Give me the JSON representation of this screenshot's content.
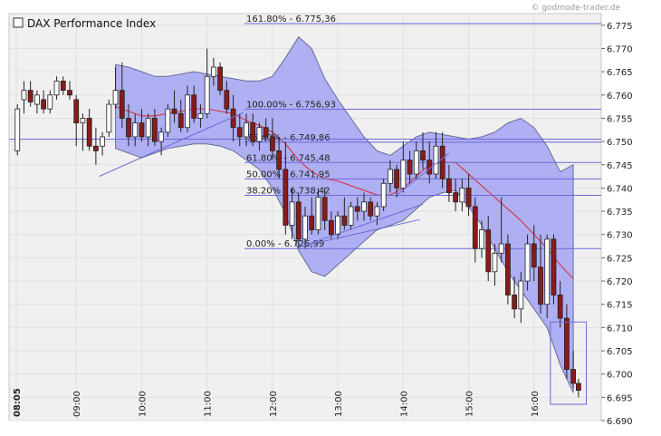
{
  "watermark": "© godmode-trader.de",
  "chart_data": {
    "type": "candlestick",
    "title": "DAX Performance Index",
    "xlabel": "",
    "ylabel": "",
    "ylim": [
      6.69,
      6.777
    ],
    "y_ticks": [
      6.69,
      6.695,
      6.7,
      6.705,
      6.71,
      6.715,
      6.72,
      6.725,
      6.73,
      6.735,
      6.74,
      6.745,
      6.75,
      6.755,
      6.76,
      6.765,
      6.77,
      6.775
    ],
    "y_tick_labels": [
      "6.690",
      "6.695",
      "6.700",
      "6.705",
      "6.710",
      "6.715",
      "6.720",
      "6.725",
      "6.730",
      "6.735",
      "6.740",
      "6.745",
      "6.750",
      "6.755",
      "6.760",
      "6.765",
      "6.770",
      "6.775"
    ],
    "x_tick_labels": [
      "08:05",
      "09:00",
      "10:00",
      "11:00",
      "12:00",
      "13:00",
      "14:00",
      "15:00",
      "16:00"
    ],
    "x_tick_times": [
      8.083,
      9.0,
      10.0,
      11.0,
      12.0,
      13.0,
      14.0,
      15.0,
      16.0
    ],
    "x_range": [
      8.0,
      17.0
    ],
    "grid": true,
    "colors": {
      "up": "#ffffff",
      "down": "#8b1a1a",
      "band_fill": "#a3a3f3",
      "band_edge": "#6b6b9b",
      "average": "#d04050",
      "level_lines": "#6a6ad8",
      "trend_lines": "#6a6ad8",
      "plot_bg": "#f0f0f0",
      "grid": "#e0e0e0"
    },
    "fibonacci_levels": [
      {
        "label": "161.80% - 6.775,36",
        "value": 6.77536
      },
      {
        "label": "100.00% - 6.756,93",
        "value": 6.75693
      },
      {
        "label": "76.40% - 6.749,86",
        "value": 6.74986
      },
      {
        "label": "61.80% - 6.745,48",
        "value": 6.74548
      },
      {
        "label": "50.00% - 6.741,95",
        "value": 6.74195
      },
      {
        "label": "38.20% - 6.738,42",
        "value": 6.73842
      },
      {
        "label": "0.00% - 6.726,99",
        "value": 6.72699
      }
    ],
    "horizontal_line": 6.7505,
    "trend_lines": [
      {
        "x": [
          9.35,
          11.55
        ],
        "y": [
          6.7425,
          6.7562
        ]
      },
      {
        "x": [
          12.45,
          14.3
        ],
        "y": [
          6.7275,
          6.7365
        ]
      },
      {
        "x": [
          12.45,
          14.25
        ],
        "y": [
          6.7275,
          6.7332
        ]
      },
      {
        "x": [
          13.9,
          14.7
        ],
        "y": [
          6.7385,
          6.7475
        ]
      }
    ],
    "highlight_box": {
      "x": [
        16.25,
        16.8
      ],
      "y": [
        6.6935,
        6.7112
      ]
    },
    "bollinger": {
      "x": [
        9.6,
        9.8,
        10.0,
        10.2,
        10.4,
        10.6,
        10.8,
        11.0,
        11.2,
        11.4,
        11.6,
        11.8,
        12.0,
        12.2,
        12.4,
        12.6,
        12.8,
        13.0,
        13.2,
        13.4,
        13.6,
        13.8,
        14.0,
        14.2,
        14.4,
        14.6,
        14.8,
        15.0,
        15.2,
        15.4,
        15.6,
        15.8,
        16.0,
        16.2,
        16.4,
        16.6
      ],
      "upper": [
        6.7665,
        6.766,
        6.765,
        6.764,
        6.764,
        6.7645,
        6.765,
        6.7645,
        6.764,
        6.7635,
        6.763,
        6.763,
        6.764,
        6.768,
        6.7725,
        6.77,
        6.7635,
        6.759,
        6.755,
        6.751,
        6.748,
        6.747,
        6.749,
        6.751,
        6.752,
        6.7515,
        6.751,
        6.7505,
        6.751,
        6.752,
        6.754,
        6.755,
        6.753,
        6.749,
        6.7435,
        6.745
      ],
      "lower": [
        6.7485,
        6.7475,
        6.7465,
        6.7475,
        6.7485,
        6.749,
        6.7495,
        6.7495,
        6.749,
        6.748,
        6.746,
        6.744,
        6.74,
        6.7345,
        6.7265,
        6.722,
        6.721,
        6.7235,
        6.726,
        6.7285,
        6.731,
        6.732,
        6.733,
        6.7355,
        6.738,
        6.739,
        6.7395,
        6.736,
        6.732,
        6.727,
        6.722,
        6.718,
        6.714,
        6.71,
        6.702,
        6.696
      ],
      "middle": [
        6.7575,
        6.7565,
        6.7555,
        6.7555,
        6.756,
        6.7565,
        6.757,
        6.757,
        6.7565,
        6.756,
        6.7545,
        6.7535,
        6.752,
        6.7495,
        6.746,
        6.7435,
        6.742,
        6.7415,
        6.7405,
        6.7395,
        6.7385,
        6.7385,
        6.74,
        6.7425,
        6.745,
        6.7455,
        6.7455,
        6.743,
        6.7405,
        6.738,
        6.7355,
        6.733,
        6.73,
        6.727,
        6.7235,
        6.7205
      ]
    },
    "candles": [
      {
        "t": 8.1,
        "o": 6.748,
        "h": 6.758,
        "l": 6.747,
        "c": 6.757
      },
      {
        "t": 8.2,
        "o": 6.759,
        "h": 6.763,
        "l": 6.756,
        "c": 6.761
      },
      {
        "t": 8.3,
        "o": 6.761,
        "h": 6.763,
        "l": 6.7575,
        "c": 6.7585
      },
      {
        "t": 8.4,
        "o": 6.758,
        "h": 6.761,
        "l": 6.756,
        "c": 6.76
      },
      {
        "t": 8.5,
        "o": 6.759,
        "h": 6.761,
        "l": 6.756,
        "c": 6.757
      },
      {
        "t": 8.6,
        "o": 6.757,
        "h": 6.761,
        "l": 6.756,
        "c": 6.76
      },
      {
        "t": 8.7,
        "o": 6.76,
        "h": 6.764,
        "l": 6.759,
        "c": 6.763
      },
      {
        "t": 8.8,
        "o": 6.763,
        "h": 6.764,
        "l": 6.76,
        "c": 6.761
      },
      {
        "t": 8.9,
        "o": 6.761,
        "h": 6.763,
        "l": 6.759,
        "c": 6.76
      },
      {
        "t": 9.0,
        "o": 6.759,
        "h": 6.76,
        "l": 6.749,
        "c": 6.754
      },
      {
        "t": 9.1,
        "o": 6.754,
        "h": 6.756,
        "l": 6.748,
        "c": 6.755
      },
      {
        "t": 9.2,
        "o": 6.755,
        "h": 6.757,
        "l": 6.748,
        "c": 6.749
      },
      {
        "t": 9.3,
        "o": 6.749,
        "h": 6.753,
        "l": 6.745,
        "c": 6.748
      },
      {
        "t": 9.4,
        "o": 6.749,
        "h": 6.752,
        "l": 6.747,
        "c": 6.751
      },
      {
        "t": 9.5,
        "o": 6.752,
        "h": 6.759,
        "l": 6.751,
        "c": 6.758
      },
      {
        "t": 9.6,
        "o": 6.758,
        "h": 6.766,
        "l": 6.757,
        "c": 6.761
      },
      {
        "t": 9.7,
        "o": 6.761,
        "h": 6.767,
        "l": 6.753,
        "c": 6.755
      },
      {
        "t": 9.8,
        "o": 6.755,
        "h": 6.758,
        "l": 6.749,
        "c": 6.751
      },
      {
        "t": 9.9,
        "o": 6.751,
        "h": 6.756,
        "l": 6.749,
        "c": 6.754
      },
      {
        "t": 10.0,
        "o": 6.754,
        "h": 6.757,
        "l": 6.75,
        "c": 6.751
      },
      {
        "t": 10.1,
        "o": 6.751,
        "h": 6.756,
        "l": 6.749,
        "c": 6.755
      },
      {
        "t": 10.2,
        "o": 6.755,
        "h": 6.757,
        "l": 6.749,
        "c": 6.75
      },
      {
        "t": 10.3,
        "o": 6.75,
        "h": 6.753,
        "l": 6.747,
        "c": 6.752
      },
      {
        "t": 10.4,
        "o": 6.752,
        "h": 6.758,
        "l": 6.751,
        "c": 6.757
      },
      {
        "t": 10.5,
        "o": 6.757,
        "h": 6.761,
        "l": 6.754,
        "c": 6.756
      },
      {
        "t": 10.6,
        "o": 6.756,
        "h": 6.759,
        "l": 6.752,
        "c": 6.753
      },
      {
        "t": 10.7,
        "o": 6.753,
        "h": 6.762,
        "l": 6.752,
        "c": 6.76
      },
      {
        "t": 10.8,
        "o": 6.76,
        "h": 6.762,
        "l": 6.754,
        "c": 6.755
      },
      {
        "t": 10.9,
        "o": 6.755,
        "h": 6.758,
        "l": 6.753,
        "c": 6.756
      },
      {
        "t": 11.0,
        "o": 6.756,
        "h": 6.77,
        "l": 6.755,
        "c": 6.764
      },
      {
        "t": 11.1,
        "o": 6.764,
        "h": 6.768,
        "l": 6.762,
        "c": 6.766
      },
      {
        "t": 11.2,
        "o": 6.766,
        "h": 6.767,
        "l": 6.76,
        "c": 6.761
      },
      {
        "t": 11.3,
        "o": 6.761,
        "h": 6.763,
        "l": 6.756,
        "c": 6.757
      },
      {
        "t": 11.4,
        "o": 6.757,
        "h": 6.76,
        "l": 6.75,
        "c": 6.753
      },
      {
        "t": 11.5,
        "o": 6.753,
        "h": 6.756,
        "l": 6.749,
        "c": 6.751
      },
      {
        "t": 11.6,
        "o": 6.751,
        "h": 6.756,
        "l": 6.749,
        "c": 6.754
      },
      {
        "t": 11.7,
        "o": 6.754,
        "h": 6.756,
        "l": 6.749,
        "c": 6.75
      },
      {
        "t": 11.8,
        "o": 6.75,
        "h": 6.754,
        "l": 6.748,
        "c": 6.753
      },
      {
        "t": 11.9,
        "o": 6.753,
        "h": 6.755,
        "l": 6.75,
        "c": 6.751
      },
      {
        "t": 12.0,
        "o": 6.751,
        "h": 6.755,
        "l": 6.746,
        "c": 6.748
      },
      {
        "t": 12.1,
        "o": 6.748,
        "h": 6.751,
        "l": 6.742,
        "c": 6.744
      },
      {
        "t": 12.2,
        "o": 6.744,
        "h": 6.75,
        "l": 6.73,
        "c": 6.732
      },
      {
        "t": 12.3,
        "o": 6.732,
        "h": 6.74,
        "l": 6.729,
        "c": 6.737
      },
      {
        "t": 12.4,
        "o": 6.737,
        "h": 6.739,
        "l": 6.727,
        "c": 6.729
      },
      {
        "t": 12.5,
        "o": 6.729,
        "h": 6.736,
        "l": 6.727,
        "c": 6.734
      },
      {
        "t": 12.6,
        "o": 6.734,
        "h": 6.738,
        "l": 6.73,
        "c": 6.731
      },
      {
        "t": 12.7,
        "o": 6.731,
        "h": 6.74,
        "l": 6.73,
        "c": 6.738
      },
      {
        "t": 12.8,
        "o": 6.738,
        "h": 6.74,
        "l": 6.731,
        "c": 6.733
      },
      {
        "t": 12.9,
        "o": 6.733,
        "h": 6.735,
        "l": 6.729,
        "c": 6.73
      },
      {
        "t": 13.0,
        "o": 6.73,
        "h": 6.735,
        "l": 6.729,
        "c": 6.734
      },
      {
        "t": 13.1,
        "o": 6.734,
        "h": 6.738,
        "l": 6.731,
        "c": 6.732
      },
      {
        "t": 13.2,
        "o": 6.732,
        "h": 6.737,
        "l": 6.731,
        "c": 6.736
      },
      {
        "t": 13.3,
        "o": 6.736,
        "h": 6.738,
        "l": 6.733,
        "c": 6.735
      },
      {
        "t": 13.4,
        "o": 6.735,
        "h": 6.739,
        "l": 6.733,
        "c": 6.737
      },
      {
        "t": 13.5,
        "o": 6.737,
        "h": 6.738,
        "l": 6.733,
        "c": 6.734
      },
      {
        "t": 13.6,
        "o": 6.734,
        "h": 6.737,
        "l": 6.732,
        "c": 6.736
      },
      {
        "t": 13.7,
        "o": 6.736,
        "h": 6.742,
        "l": 6.735,
        "c": 6.741
      },
      {
        "t": 13.8,
        "o": 6.741,
        "h": 6.746,
        "l": 6.739,
        "c": 6.744
      },
      {
        "t": 13.9,
        "o": 6.744,
        "h": 6.745,
        "l": 6.738,
        "c": 6.74
      },
      {
        "t": 14.0,
        "o": 6.74,
        "h": 6.75,
        "l": 6.739,
        "c": 6.746
      },
      {
        "t": 14.1,
        "o": 6.746,
        "h": 6.748,
        "l": 6.741,
        "c": 6.743
      },
      {
        "t": 14.2,
        "o": 6.743,
        "h": 6.75,
        "l": 6.742,
        "c": 6.748
      },
      {
        "t": 14.3,
        "o": 6.748,
        "h": 6.752,
        "l": 6.744,
        "c": 6.746
      },
      {
        "t": 14.4,
        "o": 6.746,
        "h": 6.75,
        "l": 6.741,
        "c": 6.743
      },
      {
        "t": 14.5,
        "o": 6.743,
        "h": 6.752,
        "l": 6.742,
        "c": 6.749
      },
      {
        "t": 14.6,
        "o": 6.749,
        "h": 6.752,
        "l": 6.74,
        "c": 6.742
      },
      {
        "t": 14.7,
        "o": 6.742,
        "h": 6.745,
        "l": 6.737,
        "c": 6.739
      },
      {
        "t": 14.8,
        "o": 6.739,
        "h": 6.742,
        "l": 6.735,
        "c": 6.737
      },
      {
        "t": 14.9,
        "o": 6.737,
        "h": 6.742,
        "l": 6.735,
        "c": 6.74
      },
      {
        "t": 15.0,
        "o": 6.74,
        "h": 6.743,
        "l": 6.734,
        "c": 6.736
      },
      {
        "t": 15.1,
        "o": 6.736,
        "h": 6.738,
        "l": 6.724,
        "c": 6.727
      },
      {
        "t": 15.2,
        "o": 6.727,
        "h": 6.733,
        "l": 6.725,
        "c": 6.731
      },
      {
        "t": 15.3,
        "o": 6.731,
        "h": 6.734,
        "l": 6.72,
        "c": 6.722
      },
      {
        "t": 15.4,
        "o": 6.722,
        "h": 6.728,
        "l": 6.719,
        "c": 6.726
      },
      {
        "t": 15.5,
        "o": 6.726,
        "h": 6.738,
        "l": 6.724,
        "c": 6.728
      },
      {
        "t": 15.6,
        "o": 6.728,
        "h": 6.73,
        "l": 6.715,
        "c": 6.717
      },
      {
        "t": 15.7,
        "o": 6.717,
        "h": 6.721,
        "l": 6.712,
        "c": 6.714
      },
      {
        "t": 15.8,
        "o": 6.714,
        "h": 6.722,
        "l": 6.711,
        "c": 6.72
      },
      {
        "t": 15.9,
        "o": 6.72,
        "h": 6.73,
        "l": 6.718,
        "c": 6.728
      },
      {
        "t": 16.0,
        "o": 6.728,
        "h": 6.732,
        "l": 6.72,
        "c": 6.723
      },
      {
        "t": 16.1,
        "o": 6.723,
        "h": 6.73,
        "l": 6.713,
        "c": 6.715
      },
      {
        "t": 16.2,
        "o": 6.715,
        "h": 6.73,
        "l": 6.712,
        "c": 6.729
      },
      {
        "t": 16.3,
        "o": 6.729,
        "h": 6.73,
        "l": 6.715,
        "c": 6.717
      },
      {
        "t": 16.4,
        "o": 6.717,
        "h": 6.72,
        "l": 6.71,
        "c": 6.712
      },
      {
        "t": 16.5,
        "o": 6.712,
        "h": 6.715,
        "l": 6.699,
        "c": 6.701
      },
      {
        "t": 16.6,
        "o": 6.701,
        "h": 6.705,
        "l": 6.697,
        "c": 6.698
      },
      {
        "t": 16.68,
        "o": 6.698,
        "h": 6.699,
        "l": 6.695,
        "c": 6.6965
      }
    ]
  }
}
